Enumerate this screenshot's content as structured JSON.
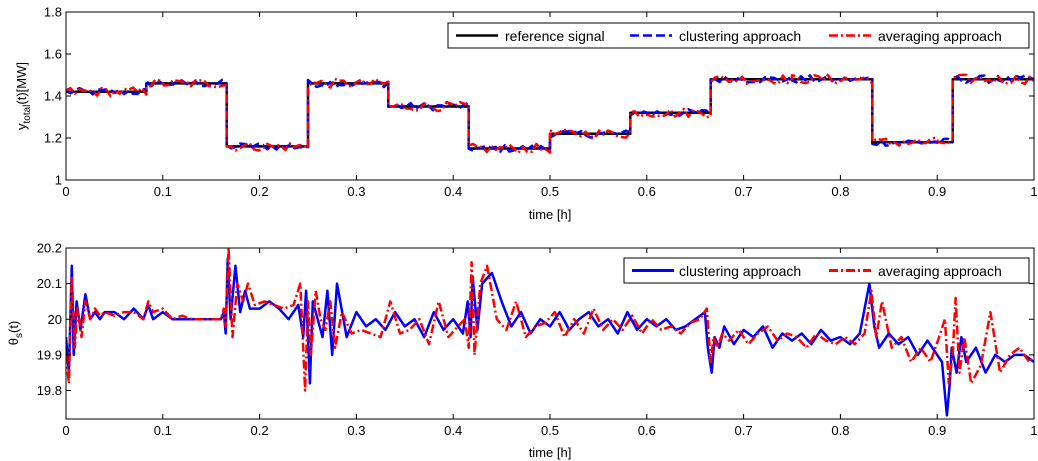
{
  "chart_data": [
    {
      "type": "line",
      "title": "",
      "xlabel": "time [h]",
      "ylabel_main": "y",
      "ylabel_sub": "total",
      "ylabel_rest": "(t)[MW]",
      "xlim": [
        0,
        1
      ],
      "ylim": [
        1,
        1.8
      ],
      "xticks": [
        "0",
        "0.1",
        "0.2",
        "0.3",
        "0.4",
        "0.5",
        "0.6",
        "0.7",
        "0.8",
        "0.9",
        "1"
      ],
      "xtick_values": [
        0,
        0.1,
        0.2,
        0.3,
        0.4,
        0.5,
        0.6,
        0.7,
        0.8,
        0.9,
        1
      ],
      "yticks": [
        "1",
        "1.2",
        "1.4",
        "1.6",
        "1.8"
      ],
      "ytick_values": [
        1,
        1.2,
        1.4,
        1.6,
        1.8
      ],
      "grid": false,
      "legend_position": "top-right",
      "reference_steps": {
        "boundaries": [
          0,
          0.083,
          0.166,
          0.25,
          0.333,
          0.416,
          0.5,
          0.583,
          0.666,
          0.75,
          0.833,
          0.916,
          1
        ],
        "levels": [
          1.42,
          1.46,
          1.16,
          1.46,
          1.35,
          1.15,
          1.22,
          1.32,
          1.48,
          1.48,
          1.18,
          1.48
        ]
      },
      "tracking_noise": {
        "clustering": 0.018,
        "averaging": 0.022
      },
      "series": [
        {
          "name": "reference signal",
          "color": "#000000",
          "style": "solid"
        },
        {
          "name": "clustering approach",
          "color": "#0000ff",
          "style": "dashed"
        },
        {
          "name": "averaging approach",
          "color": "#ff0000",
          "style": "dashdot"
        }
      ]
    },
    {
      "type": "line",
      "title": "",
      "xlabel": "time [h]",
      "ylabel_main": "θ",
      "ylabel_sub": "s",
      "ylabel_rest": "(t)",
      "xlim": [
        0,
        1
      ],
      "ylim": [
        19.72,
        20.2
      ],
      "xticks": [
        "0",
        "0.1",
        "0.2",
        "0.3",
        "0.4",
        "0.5",
        "0.6",
        "0.7",
        "0.8",
        "0.9",
        "1"
      ],
      "xtick_values": [
        0,
        0.1,
        0.2,
        0.3,
        0.4,
        0.5,
        0.6,
        0.7,
        0.8,
        0.9,
        1
      ],
      "yticks": [
        "19.8",
        "19.9",
        "20",
        "20.1",
        "20.2"
      ],
      "ytick_values": [
        19.8,
        19.9,
        20,
        20.1,
        20.2
      ],
      "grid": false,
      "legend_position": "top-right",
      "series": [
        {
          "name": "clustering approach",
          "color": "#0000ff",
          "style": "solid",
          "x": [
            0,
            0.003,
            0.006,
            0.008,
            0.011,
            0.015,
            0.02,
            0.025,
            0.03,
            0.035,
            0.04,
            0.05,
            0.06,
            0.07,
            0.08,
            0.085,
            0.09,
            0.1,
            0.11,
            0.12,
            0.13,
            0.14,
            0.145,
            0.16,
            0.163,
            0.165,
            0.167,
            0.17,
            0.175,
            0.18,
            0.185,
            0.19,
            0.2,
            0.21,
            0.22,
            0.23,
            0.24,
            0.245,
            0.248,
            0.252,
            0.255,
            0.26,
            0.265,
            0.27,
            0.275,
            0.28,
            0.29,
            0.3,
            0.31,
            0.32,
            0.33,
            0.34,
            0.35,
            0.36,
            0.37,
            0.38,
            0.39,
            0.4,
            0.41,
            0.415,
            0.418,
            0.42,
            0.425,
            0.43,
            0.44,
            0.45,
            0.46,
            0.47,
            0.48,
            0.49,
            0.5,
            0.51,
            0.52,
            0.53,
            0.54,
            0.55,
            0.56,
            0.57,
            0.58,
            0.59,
            0.6,
            0.61,
            0.62,
            0.63,
            0.64,
            0.65,
            0.66,
            0.663,
            0.667,
            0.67,
            0.675,
            0.68,
            0.69,
            0.7,
            0.71,
            0.72,
            0.73,
            0.74,
            0.75,
            0.76,
            0.77,
            0.78,
            0.79,
            0.8,
            0.81,
            0.82,
            0.83,
            0.835,
            0.84,
            0.85,
            0.86,
            0.87,
            0.88,
            0.89,
            0.9,
            0.905,
            0.91,
            0.913,
            0.915,
            0.92,
            0.925,
            0.93,
            0.94,
            0.95,
            0.96,
            0.97,
            0.98,
            0.99,
            1
          ],
          "y": [
            19.95,
            19.85,
            20.15,
            19.9,
            20.05,
            19.97,
            20.07,
            20.0,
            20.02,
            20.0,
            20.02,
            20.02,
            20.0,
            20.03,
            20.0,
            20.04,
            20.0,
            20.02,
            20.0,
            20.0,
            20.0,
            20.0,
            20.0,
            20.0,
            20.02,
            19.96,
            20.17,
            20.0,
            20.15,
            20.02,
            20.08,
            20.03,
            20.03,
            20.05,
            20.03,
            20.0,
            20.04,
            19.95,
            20.08,
            19.82,
            20.05,
            20.0,
            19.95,
            20.08,
            19.9,
            20.1,
            19.95,
            20.02,
            19.98,
            20.0,
            19.97,
            20.02,
            19.98,
            20.0,
            19.95,
            20.02,
            19.97,
            20.0,
            19.96,
            20.05,
            19.95,
            20.12,
            19.97,
            20.1,
            20.13,
            20.05,
            19.98,
            20.02,
            19.96,
            20.0,
            19.98,
            20.02,
            19.97,
            20.0,
            20.02,
            19.98,
            20.0,
            19.96,
            20.02,
            19.97,
            20.0,
            19.98,
            20.0,
            19.97,
            19.98,
            20.0,
            20.02,
            19.92,
            19.85,
            19.95,
            19.92,
            19.98,
            19.93,
            19.97,
            19.95,
            19.98,
            19.92,
            19.96,
            19.94,
            19.96,
            19.93,
            19.97,
            19.94,
            19.95,
            19.93,
            19.96,
            20.1,
            19.98,
            19.92,
            19.96,
            19.93,
            19.95,
            19.9,
            19.94,
            19.9,
            19.88,
            19.73,
            19.82,
            19.92,
            19.85,
            19.95,
            19.88,
            19.92,
            19.85,
            19.9,
            19.88,
            19.9,
            19.9,
            19.88
          ]
        },
        {
          "name": "averaging approach",
          "color": "#ff0000",
          "style": "dashdot",
          "x": [
            0,
            0.003,
            0.006,
            0.009,
            0.012,
            0.016,
            0.02,
            0.025,
            0.03,
            0.035,
            0.04,
            0.05,
            0.06,
            0.07,
            0.08,
            0.085,
            0.09,
            0.1,
            0.11,
            0.12,
            0.13,
            0.14,
            0.145,
            0.16,
            0.163,
            0.165,
            0.168,
            0.172,
            0.177,
            0.183,
            0.188,
            0.195,
            0.205,
            0.215,
            0.225,
            0.235,
            0.242,
            0.247,
            0.25,
            0.253,
            0.258,
            0.263,
            0.268,
            0.273,
            0.278,
            0.285,
            0.295,
            0.305,
            0.315,
            0.325,
            0.335,
            0.345,
            0.355,
            0.365,
            0.375,
            0.385,
            0.395,
            0.405,
            0.412,
            0.416,
            0.419,
            0.422,
            0.428,
            0.435,
            0.445,
            0.455,
            0.465,
            0.475,
            0.485,
            0.495,
            0.505,
            0.515,
            0.525,
            0.535,
            0.545,
            0.555,
            0.565,
            0.575,
            0.585,
            0.595,
            0.605,
            0.615,
            0.625,
            0.635,
            0.645,
            0.655,
            0.662,
            0.666,
            0.669,
            0.673,
            0.678,
            0.685,
            0.695,
            0.705,
            0.715,
            0.725,
            0.735,
            0.745,
            0.755,
            0.765,
            0.775,
            0.785,
            0.795,
            0.805,
            0.815,
            0.825,
            0.832,
            0.837,
            0.843,
            0.853,
            0.863,
            0.873,
            0.883,
            0.893,
            0.902,
            0.908,
            0.912,
            0.916,
            0.919,
            0.923,
            0.928,
            0.935,
            0.945,
            0.955,
            0.965,
            0.975,
            0.985,
            0.995,
            1
          ],
          "y": [
            19.9,
            19.82,
            20.12,
            19.92,
            20.03,
            19.95,
            20.05,
            20.0,
            20.03,
            20.01,
            20.02,
            20.01,
            20.02,
            20.02,
            20.0,
            20.05,
            20.02,
            20.03,
            20.0,
            20.01,
            20.0,
            20.0,
            20.0,
            20.0,
            20.03,
            19.98,
            20.2,
            19.95,
            20.1,
            20.05,
            20.1,
            20.04,
            20.05,
            20.04,
            20.03,
            20.04,
            20.1,
            19.8,
            20.05,
            19.9,
            20.08,
            20.0,
            19.97,
            20.05,
            19.92,
            20.02,
            19.96,
            19.97,
            19.96,
            19.95,
            20.05,
            19.96,
            19.97,
            20.0,
            19.93,
            20.05,
            19.95,
            19.98,
            20.0,
            19.92,
            20.16,
            19.9,
            20.1,
            20.15,
            20.0,
            19.97,
            20.05,
            19.95,
            19.98,
            19.99,
            20.02,
            19.95,
            20.0,
            19.96,
            20.03,
            19.97,
            20.0,
            19.97,
            20.01,
            19.96,
            20.0,
            19.97,
            19.98,
            19.96,
            19.99,
            20.0,
            20.03,
            19.88,
            19.95,
            19.92,
            19.96,
            19.94,
            19.97,
            19.93,
            19.96,
            19.98,
            19.94,
            19.96,
            19.95,
            19.92,
            19.96,
            19.94,
            19.93,
            19.95,
            19.93,
            19.96,
            20.08,
            19.95,
            20.05,
            19.92,
            19.95,
            19.88,
            19.92,
            19.88,
            19.95,
            20.0,
            19.82,
            19.9,
            20.06,
            19.85,
            19.95,
            19.82,
            19.87,
            20.02,
            19.85,
            19.9,
            19.92,
            19.88,
            19.9
          ]
        }
      ]
    }
  ]
}
